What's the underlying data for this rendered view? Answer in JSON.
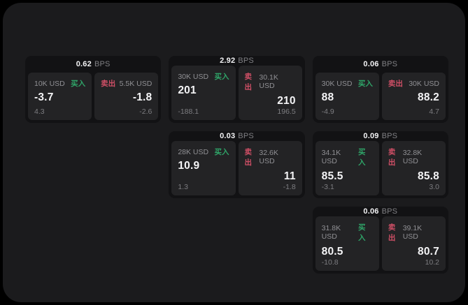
{
  "colors": {
    "buy": "#2fa468",
    "sell": "#cf4f66",
    "panel-bg": "#1b1b1d",
    "card-bg": "#121214",
    "pane-bg": "#232325"
  },
  "cards": [
    {
      "bps": "0.62",
      "unit": "BPS",
      "buy": {
        "amount": "10K USD",
        "tag": "买入",
        "value": "-3.7",
        "delta": "4.3"
      },
      "sell": {
        "tag": "卖出",
        "amount": "5.5K USD",
        "value": "-1.8",
        "delta": "-2.6"
      }
    },
    {
      "bps": "2.92",
      "unit": "BPS",
      "buy": {
        "amount": "30K USD",
        "tag": "买入",
        "value": "201",
        "delta": "-188.1"
      },
      "sell": {
        "tag": "卖出",
        "amount": "30.1K USD",
        "value": "210",
        "delta": "196.5"
      }
    },
    {
      "bps": "0.06",
      "unit": "BPS",
      "buy": {
        "amount": "30K USD",
        "tag": "买入",
        "value": "88",
        "delta": "-4.9"
      },
      "sell": {
        "tag": "卖出",
        "amount": "30K USD",
        "value": "88.2",
        "delta": "4.7"
      }
    },
    {
      "bps": "0.03",
      "unit": "BPS",
      "buy": {
        "amount": "28K USD",
        "tag": "买入",
        "value": "10.9",
        "delta": "1.3"
      },
      "sell": {
        "tag": "卖出",
        "amount": "32.6K USD",
        "value": "11",
        "delta": "-1.8"
      }
    },
    {
      "bps": "0.09",
      "unit": "BPS",
      "buy": {
        "amount": "34.1K USD",
        "tag": "买入",
        "value": "85.5",
        "delta": "-3.1"
      },
      "sell": {
        "tag": "卖出",
        "amount": "32.8K USD",
        "value": "85.8",
        "delta": "3.0"
      }
    },
    {
      "bps": "0.06",
      "unit": "BPS",
      "buy": {
        "amount": "31.8K USD",
        "tag": "买入",
        "value": "80.5",
        "delta": "-10.8"
      },
      "sell": {
        "tag": "卖出",
        "amount": "39.1K USD",
        "value": "80.7",
        "delta": "10.2"
      }
    }
  ]
}
